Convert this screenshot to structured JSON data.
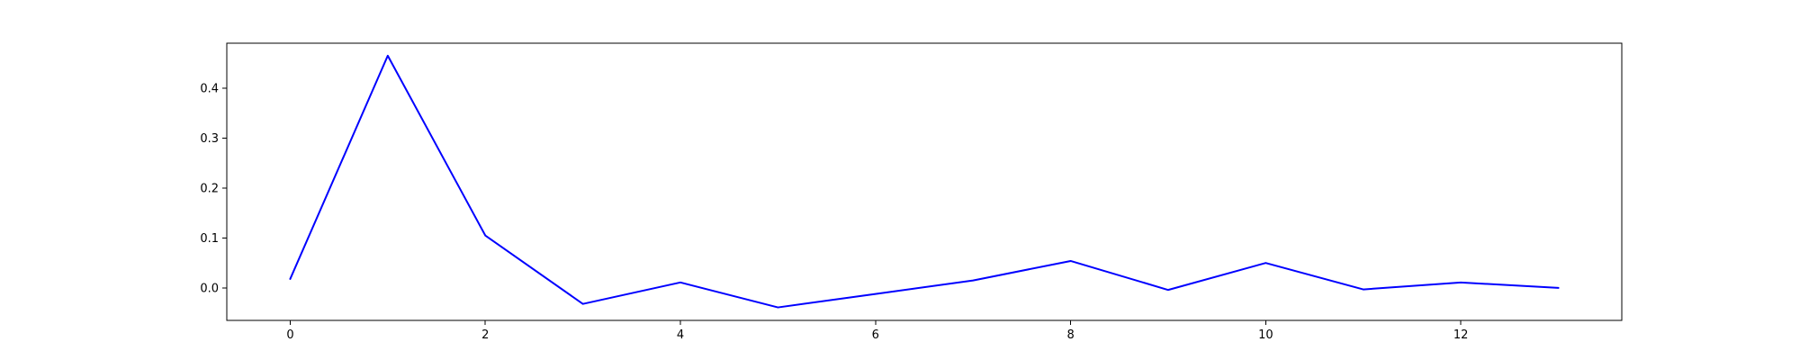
{
  "chart_data": {
    "type": "line",
    "title": "",
    "xlabel": "",
    "ylabel": "",
    "xlim": [
      -0.65,
      13.65
    ],
    "ylim": [
      -0.065,
      0.49
    ],
    "grid": false,
    "xticks": [
      0,
      2,
      4,
      6,
      8,
      10,
      12
    ],
    "xtick_labels": [
      "0",
      "2",
      "4",
      "6",
      "8",
      "10",
      "12"
    ],
    "yticks": [
      0.0,
      0.1,
      0.2,
      0.3,
      0.4
    ],
    "ytick_labels": [
      "0.0",
      "0.1",
      "0.2",
      "0.3",
      "0.4"
    ],
    "series": [
      {
        "color": "#0000ff",
        "x": [
          0,
          1,
          2,
          3,
          4,
          5,
          6,
          7,
          8,
          9,
          10,
          11,
          12,
          13
        ],
        "y": [
          0.018,
          0.465,
          0.105,
          -0.032,
          0.011,
          -0.039,
          -0.012,
          0.015,
          0.054,
          -0.004,
          0.05,
          -0.003,
          0.011,
          0.0
        ]
      }
    ]
  }
}
